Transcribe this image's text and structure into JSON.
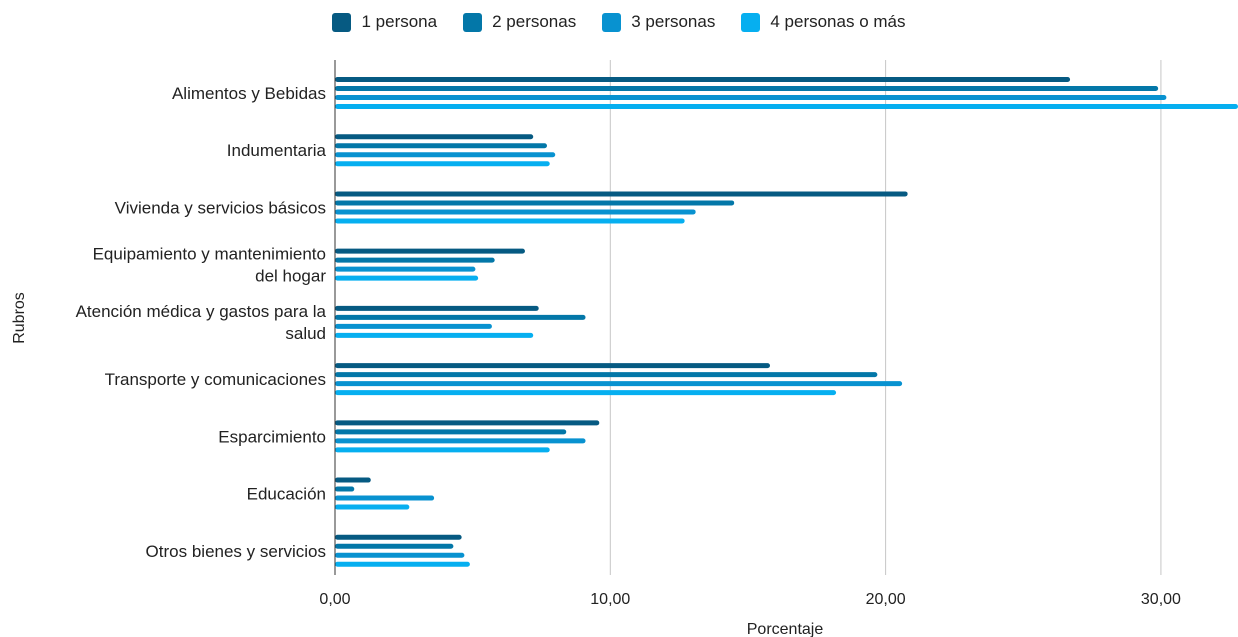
{
  "chart_data": {
    "type": "bar",
    "orientation": "horizontal",
    "title": "",
    "xlabel": "Porcentaje",
    "ylabel": "Rubros",
    "xlim": [
      0,
      32.8
    ],
    "x_ticks": [
      0,
      10,
      20,
      30
    ],
    "x_tick_labels": [
      "0,00",
      "10,00",
      "20,00",
      "30,00"
    ],
    "grid": "vertical",
    "legend_position": "top",
    "categories": [
      [
        "Alimentos y Bebidas"
      ],
      [
        "Indumentaria"
      ],
      [
        "Vivienda y servicios básicos"
      ],
      [
        "Equipamiento y mantenimiento",
        "del hogar"
      ],
      [
        "Atención médica y gastos para la",
        "salud"
      ],
      [
        "Transporte y comunicaciones"
      ],
      [
        "Esparcimiento"
      ],
      [
        "Educación"
      ],
      [
        "Otros bienes y servicios"
      ]
    ],
    "series": [
      {
        "name": "1 persona",
        "color": "#065a82",
        "values": [
          26.7,
          7.2,
          20.8,
          6.9,
          7.4,
          15.8,
          9.6,
          1.3,
          4.6
        ]
      },
      {
        "name": "2 personas",
        "color": "#0377a8",
        "values": [
          29.9,
          7.7,
          14.5,
          5.8,
          9.1,
          19.7,
          8.4,
          0.7,
          4.3
        ]
      },
      {
        "name": "3 personas",
        "color": "#0892d0",
        "values": [
          30.2,
          8.0,
          13.1,
          5.1,
          5.7,
          20.6,
          9.1,
          3.6,
          4.7
        ]
      },
      {
        "name": "4 personas o más",
        "color": "#06aff0",
        "values": [
          33.5,
          7.8,
          12.7,
          5.2,
          7.2,
          18.2,
          7.8,
          2.7,
          4.9
        ]
      }
    ]
  }
}
